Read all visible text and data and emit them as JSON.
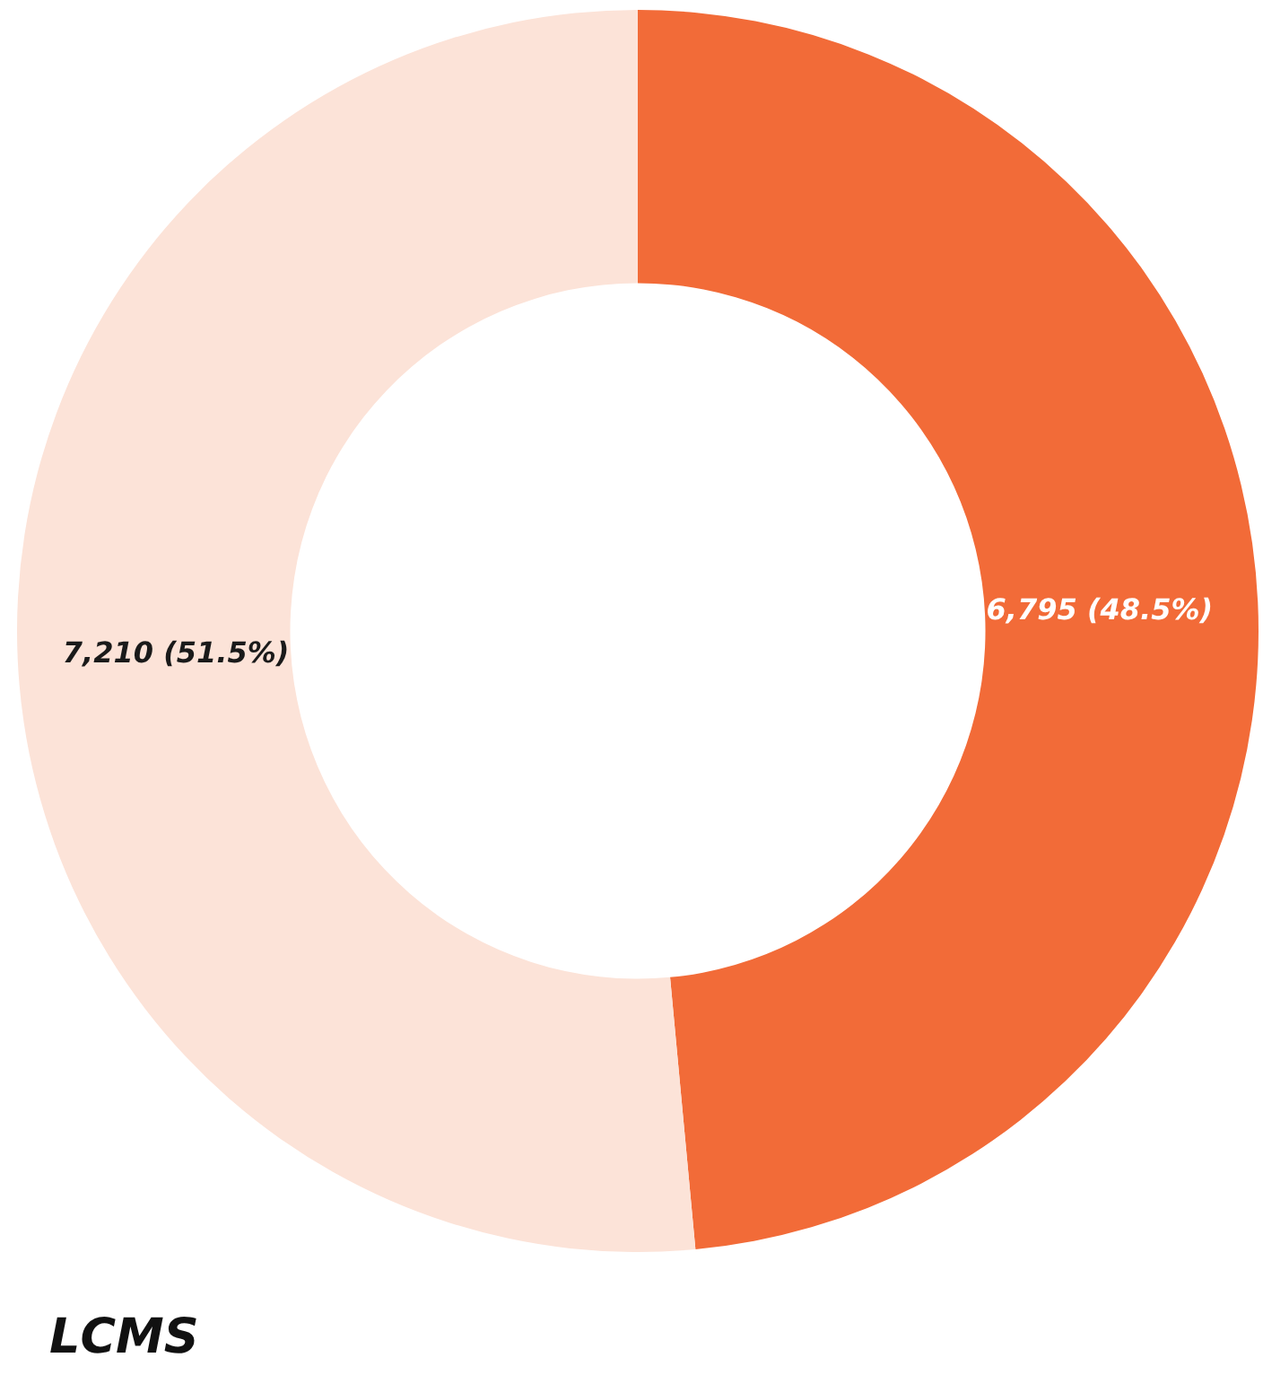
{
  "chart_data": {
    "type": "donut",
    "title": "LCMS",
    "categories": [
      null,
      null
    ],
    "values": [
      6795,
      7210
    ],
    "colors": [
      "#f26b38",
      "#fce3d8"
    ],
    "value_labels": [
      "6,795 (48.5%)",
      "7,210 (51.5%)"
    ]
  }
}
